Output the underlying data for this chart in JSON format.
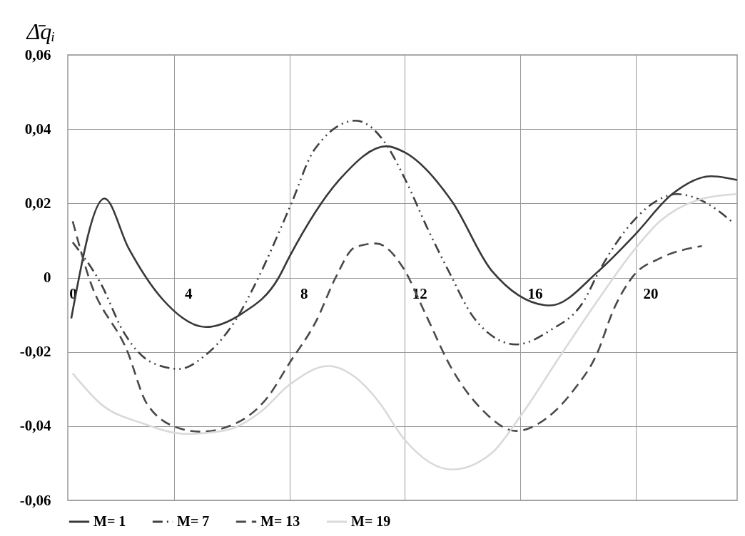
{
  "chart_data": {
    "type": "line",
    "ylabel": "Δ̄qᵢ",
    "xlim": [
      -0.17,
      23
    ],
    "xticks": [
      0,
      {
        "value": 3.5,
        "label": null
      },
      4,
      {
        "value": 7.5,
        "label": null
      },
      8,
      {
        "value": 11.5,
        "label": null
      },
      12,
      {
        "value": 15.5,
        "label": null
      },
      16,
      {
        "value": 19.5,
        "label": null
      },
      20
    ],
    "ylim": [
      -0.06,
      0.06
    ],
    "yticks": [
      {
        "value": -0.06,
        "label": "-0,06"
      },
      {
        "value": -0.04,
        "label": "-0,04"
      },
      {
        "value": -0.02,
        "label": "-0,02"
      },
      0,
      {
        "value": 0.02,
        "label": "0,02"
      },
      {
        "value": 0.04,
        "label": "0,04"
      },
      {
        "value": 0.06,
        "label": "0,06"
      }
    ],
    "grid": true,
    "legend": "bottom",
    "series": [
      {
        "name": "M= 1",
        "color": "#383838",
        "line_style": "solid",
        "x": [
          -0.05,
          1.1,
          1.93,
          3.13,
          4.6,
          5.83,
          7.13,
          7.5,
          9.27,
          10.86,
          11.5,
          13.14,
          14.5,
          16.53,
          18.22,
          19.48,
          20.75,
          22.1,
          23.0
        ],
        "values": [
          -0.011,
          0.0213,
          0.008,
          -0.006,
          -0.0133,
          -0.0098,
          0,
          0.0056,
          0.0267,
          0.0354,
          0.0337,
          0.0204,
          0.0019,
          -0.0075,
          0.0019,
          0.0117,
          0.0225,
          0.0273,
          0.0263
        ]
      },
      {
        "name": "M= 7",
        "color": "#404040",
        "line_style": "dashdotdot",
        "x": [
          0,
          1.0,
          1.73,
          2.7,
          3.7,
          4.53,
          5.66,
          6.32,
          7.55,
          8.36,
          9.8,
          10.76,
          11.52,
          12.29,
          13.05,
          13.83,
          14.5,
          15.35,
          16.53,
          17.7,
          18.22,
          19.4,
          20.33,
          20.92,
          21.86,
          22.86
        ],
        "values": [
          0.0095,
          -0.002,
          -0.0142,
          -0.0227,
          -0.0246,
          -0.0213,
          -0.0112,
          -0.0017,
          0.0196,
          0.0344,
          0.0423,
          0.0369,
          0.0263,
          0.0131,
          0.0012,
          -0.0102,
          -0.0156,
          -0.018,
          -0.0142,
          -0.0062,
          0.0017,
          0.0152,
          0.0212,
          0.0225,
          0.0204,
          0.0148
        ]
      },
      {
        "name": "M= 13",
        "color": "#4a4a4a",
        "line_style": "dashed",
        "x": [
          0,
          0.56,
          1.9,
          2.57,
          3.7,
          4.43,
          5.66,
          6.74,
          7.48,
          8.46,
          9.1,
          9.76,
          10.5,
          11.45,
          12.2,
          13.14,
          14.15,
          15.35,
          16.36,
          17.37,
          18.13,
          18.74,
          19.4,
          20.33,
          21.78
        ],
        "values": [
          0.0152,
          0,
          -0.02,
          -0.034,
          -0.0406,
          -0.0415,
          -0.0392,
          -0.0323,
          -0.0233,
          -0.0112,
          0,
          0.0081,
          0.0092,
          0.0025,
          -0.0096,
          -0.0248,
          -0.0354,
          -0.0413,
          -0.0381,
          -0.03,
          -0.0208,
          -0.0083,
          0.0004,
          0.0052,
          0.0085
        ]
      },
      {
        "name": "M= 19",
        "color": "#d9d9d9",
        "line_style": "solid",
        "x": [
          0,
          1.0,
          2.4,
          3.94,
          5.27,
          6.5,
          7.48,
          8.85,
          9.76,
          10.6,
          11.45,
          13.14,
          14.5,
          15.5,
          16.95,
          18.22,
          19.4,
          20.33,
          21.6,
          22.96
        ],
        "values": [
          -0.0258,
          -0.0342,
          -0.0392,
          -0.0421,
          -0.0412,
          -0.0362,
          -0.029,
          -0.0238,
          -0.0267,
          -0.0335,
          -0.0433,
          -0.0517,
          -0.0473,
          -0.0373,
          -0.0202,
          -0.0056,
          0.0071,
          0.0152,
          0.0208,
          0.0225
        ]
      }
    ]
  }
}
